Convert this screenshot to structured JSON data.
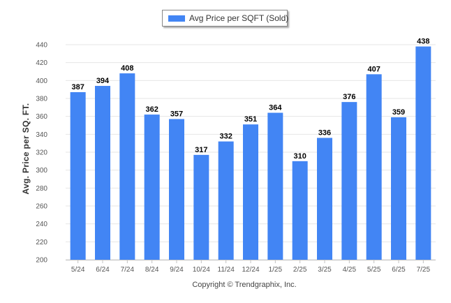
{
  "legend": {
    "label": "Avg Price per SQFT (Sold)"
  },
  "footer": {
    "copyright": "Copyright © Trendgraphix, Inc."
  },
  "colors": {
    "bar": "#4285F4",
    "grid": "#e6e6e6",
    "axis": "#c0c0c0"
  },
  "chart_data": {
    "type": "bar",
    "ylabel": "Avg. Price per SQ. FT.",
    "ylim": [
      200,
      440
    ],
    "yticks": [
      200,
      220,
      240,
      260,
      280,
      300,
      320,
      340,
      360,
      380,
      400,
      420,
      440
    ],
    "grid": true,
    "legend_position": "top-center",
    "categories": [
      "5/24",
      "6/24",
      "7/24",
      "8/24",
      "9/24",
      "10/24",
      "11/24",
      "12/24",
      "1/25",
      "2/25",
      "3/25",
      "4/25",
      "5/25",
      "6/25",
      "7/25"
    ],
    "series": [
      {
        "name": "Avg Price per SQFT (Sold)",
        "values": [
          387,
          394,
          408,
          362,
          357,
          317,
          332,
          351,
          364,
          310,
          336,
          376,
          407,
          359,
          438
        ]
      }
    ]
  }
}
